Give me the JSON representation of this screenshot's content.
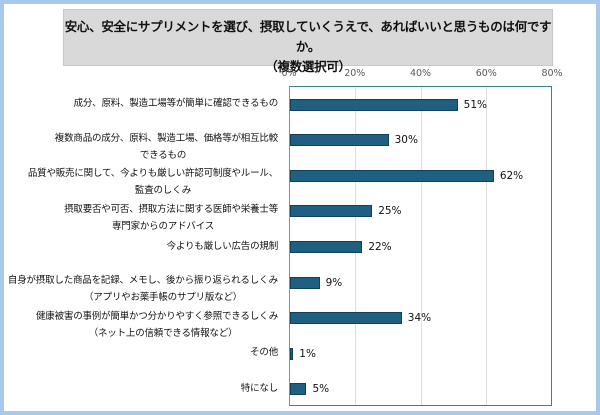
{
  "chart_data": {
    "type": "bar",
    "orientation": "horizontal",
    "title": "安心、安全にサプリメントを選び、摂取していくうえで、あればいいと思うものは何ですか。（複数選択可）",
    "title_lines": [
      "安心、安全にサプリメントを選び、摂取していくうえで、あればいいと思うものは何ですか。",
      "（複数選択可）"
    ],
    "xlabel": "",
    "ylabel": "",
    "xlim": [
      0,
      80
    ],
    "x_ticks": [
      "0%",
      "20%",
      "40%",
      "60%",
      "80%"
    ],
    "x_tick_values": [
      0,
      20,
      40,
      60,
      80
    ],
    "grid": true,
    "legend": null,
    "categories": [
      [
        "成分、原料、製造工場等が簡単に確認できるもの"
      ],
      [
        "複数商品の成分、原料、製造工場、価格等が相互比較",
        "できるもの"
      ],
      [
        "品質や販売に関して、今よりも厳しい許認可制度やルール、",
        "監査のしくみ"
      ],
      [
        "摂取要否や可否、摂取方法に関する医師や栄養士等",
        "専門家からのアドバイス"
      ],
      [
        "今よりも厳しい広告の規制"
      ],
      [
        "自身が摂取した商品を記録、メモし、後から振り返られるしくみ",
        "（アプリやお薬手帳のサプリ版など）"
      ],
      [
        "健康被害の事例が簡単かつ分かりやすく参照できるしくみ",
        "（ネット上の信頼できる情報など）"
      ],
      [
        "その他"
      ],
      [
        "特になし"
      ]
    ],
    "values": [
      51,
      30,
      62,
      25,
      22,
      9,
      34,
      1,
      5
    ],
    "value_labels": [
      "51%",
      "30%",
      "62%",
      "25%",
      "22%",
      "9%",
      "34%",
      "1%",
      "5%"
    ],
    "unit": "%",
    "bar_color": "#1f5f82"
  }
}
